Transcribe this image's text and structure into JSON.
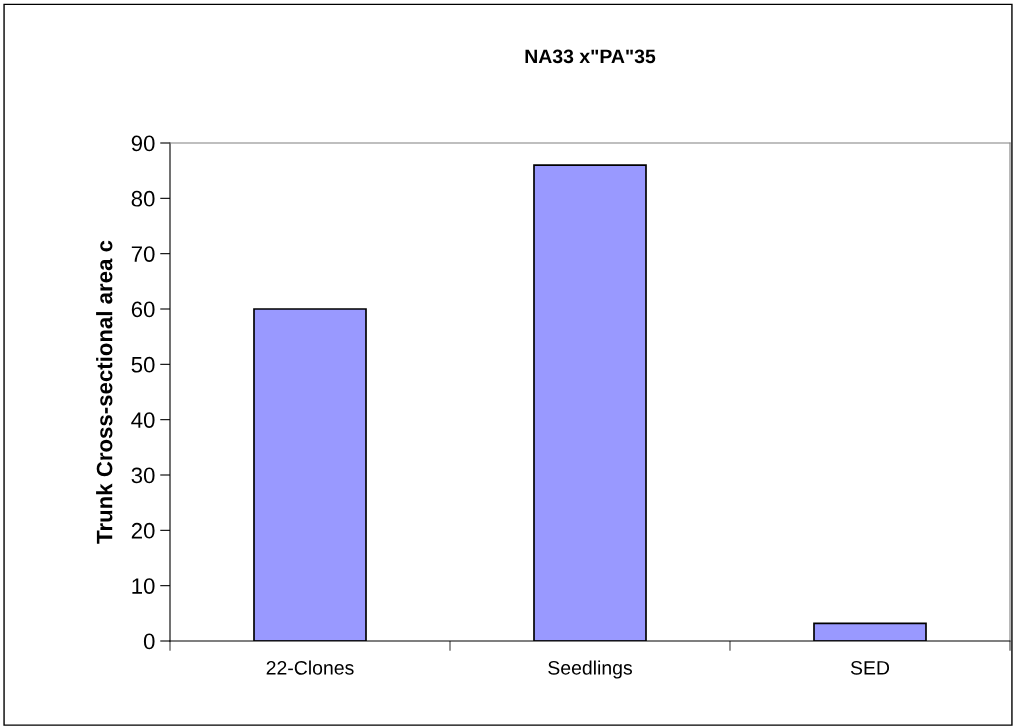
{
  "chart_data": {
    "type": "bar",
    "title": "NA33 x\"PA\"35",
    "ylabel": "Trunk Cross-sectional area c",
    "categories": [
      "22-Clones",
      "Seedlings",
      "SED"
    ],
    "series": [
      {
        "color": "#9999ff",
        "values": [
          60,
          86,
          3.2
        ]
      }
    ],
    "ylim": [
      0,
      90
    ],
    "yticks": [
      0,
      10,
      20,
      30,
      40,
      50,
      60,
      70,
      80,
      90
    ],
    "grid": false,
    "legend": false
  }
}
